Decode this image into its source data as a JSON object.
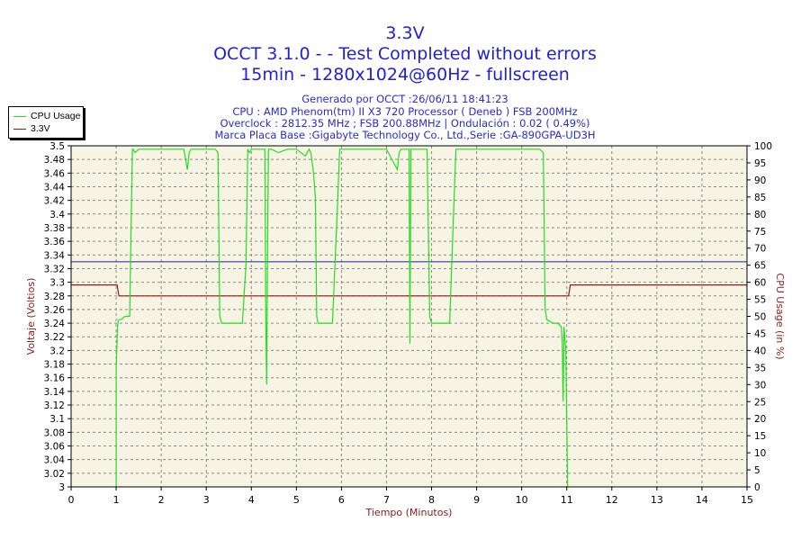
{
  "header": {
    "title": "3.3V",
    "subtitle1": "OCCT 3.1.0 -  - Test Completed without errors",
    "subtitle2": "15min - 1280x1024@60Hz - fullscreen",
    "info1": "Generado por OCCT :26/06/11 18:41:23",
    "info2": "CPU : AMD Phenom(tm) II X3 720 Processor ( Deneb ) FSB 200MHz",
    "info3": "Overclock : 2812.35 MHz ; FSB 200.88MHz | Ondulación : 0.02 ( 0.49%)",
    "info4": "Marca Placa Base :Gigabyte Technology Co., Ltd.,Serie :GA-890GPA-UD3H"
  },
  "legend": {
    "series1": "CPU Usage",
    "series2": "3.3V"
  },
  "colors": {
    "cpu": "#22dd22",
    "voltage": "#8b1a1a",
    "reference": "#1f1fa0",
    "plot_bg": "#f8f4e4",
    "title": "#1f1fd6"
  },
  "chart_data": {
    "type": "line",
    "xlabel": "Tiempo (Minutos)",
    "ylabel_left": "Voltaje (Voltios)",
    "ylabel_right": "CPU Usage (in %)",
    "xlim": [
      0,
      15
    ],
    "ylim_left": [
      3.0,
      3.5
    ],
    "ylim_right": [
      0,
      100
    ],
    "grid": true,
    "legend_position": "top-left",
    "x_ticks": [
      "0",
      "1",
      "2",
      "3",
      "4",
      "5",
      "6",
      "7",
      "8",
      "9",
      "10",
      "11",
      "12",
      "13",
      "14",
      "15"
    ],
    "y_ticks_left": [
      "3",
      "3.02",
      "3.04",
      "3.06",
      "3.08",
      "3.1",
      "3.12",
      "3.14",
      "3.16",
      "3.18",
      "3.2",
      "3.22",
      "3.24",
      "3.26",
      "3.28",
      "3.3",
      "3.32",
      "3.34",
      "3.36",
      "3.38",
      "3.4",
      "3.42",
      "3.44",
      "3.46",
      "3.48",
      "3.5"
    ],
    "y_ticks_right": [
      "0",
      "5",
      "10",
      "15",
      "20",
      "25",
      "30",
      "35",
      "40",
      "45",
      "50",
      "55",
      "60",
      "65",
      "70",
      "75",
      "80",
      "85",
      "90",
      "95",
      "100"
    ],
    "reference_line": {
      "value": 3.33
    },
    "series": [
      {
        "name": "3.3V",
        "axis": "left",
        "x": [
          0,
          1.02,
          1.06,
          11.04,
          11.08,
          15
        ],
        "y": [
          3.296,
          3.296,
          3.28,
          3.28,
          3.296,
          3.296
        ]
      },
      {
        "name": "CPU Usage",
        "axis": "right",
        "x": [
          1.0,
          1.0,
          1.03,
          1.05,
          1.1,
          1.2,
          1.3,
          1.33,
          1.36,
          1.38,
          1.42,
          1.5,
          2.0,
          2.5,
          2.58,
          2.62,
          2.66,
          3.0,
          3.2,
          3.26,
          3.3,
          3.34,
          3.6,
          3.8,
          3.88,
          3.92,
          3.96,
          4.0,
          4.3,
          4.32,
          4.34,
          4.36,
          4.38,
          4.45,
          4.6,
          4.8,
          5.0,
          5.2,
          5.28,
          5.32,
          5.38,
          5.42,
          5.45,
          5.48,
          5.52,
          5.8,
          5.92,
          5.96,
          6.0,
          6.5,
          7.0,
          7.24,
          7.28,
          7.32,
          7.5,
          7.52,
          7.54,
          7.56,
          7.6,
          7.9,
          7.96,
          8.0,
          8.2,
          8.4,
          8.5,
          8.54,
          8.6,
          9.0,
          9.5,
          10.0,
          10.4,
          10.48,
          10.52,
          10.56,
          10.7,
          10.8,
          10.88,
          10.9,
          10.92,
          10.94,
          10.98,
          11.0,
          11.02
        ],
        "y": [
          0,
          35,
          47,
          49,
          49,
          50,
          50,
          75,
          99,
          99,
          98,
          99,
          99,
          99,
          93,
          98,
          99,
          99,
          99,
          98,
          50,
          48,
          48,
          48,
          65,
          99,
          98,
          99,
          99,
          50,
          30,
          70,
          99,
          99,
          98,
          99,
          99,
          97,
          99,
          98,
          92,
          85,
          50,
          48,
          48,
          48,
          85,
          99,
          99,
          99,
          99,
          93,
          98,
          99,
          99,
          42,
          99,
          99,
          99,
          99,
          50,
          48,
          48,
          48,
          85,
          99,
          99,
          99,
          99,
          99,
          99,
          98,
          52,
          49,
          48,
          48,
          47,
          42,
          25,
          47,
          40,
          20,
          0
        ]
      }
    ]
  }
}
